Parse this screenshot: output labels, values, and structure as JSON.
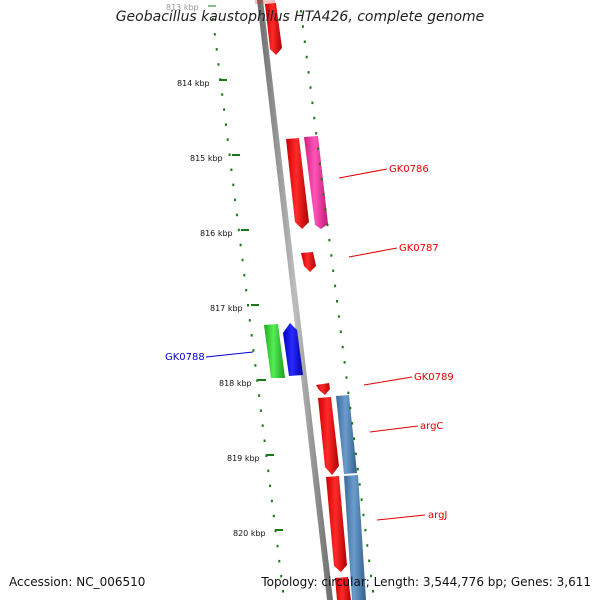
{
  "title": "Geobacillus kaustophilus HTA426, complete genome",
  "footer": {
    "accession": "Accession: NC_006510",
    "summary": "Topology: circular; Length: 3,544,776 bp; Genes: 3,611"
  },
  "ruler": [
    {
      "label": "813 kbp",
      "faded": true
    },
    {
      "label": "814 kbp"
    },
    {
      "label": "815 kbp"
    },
    {
      "label": "816 kbp"
    },
    {
      "label": "817 kbp"
    },
    {
      "label": "818 kbp"
    },
    {
      "label": "819 kbp"
    },
    {
      "label": "820 kbp"
    }
  ],
  "genes": [
    {
      "label": "GK0786",
      "color": "#e00000"
    },
    {
      "label": "GK0787",
      "color": "#e00000"
    },
    {
      "label": "GK0788",
      "color": "#0000cc"
    },
    {
      "label": "GK0789",
      "color": "#e00000"
    },
    {
      "label": "argC",
      "color": "#e00000"
    },
    {
      "label": "argJ",
      "color": "#e00000"
    }
  ],
  "colors": {
    "cds_forward": "#ff0000",
    "cds_reverse_blue": "#0000ff",
    "rna": "#ff33aa",
    "green_feature": "#33cc33",
    "steel_feature": "#4a7fb0",
    "ruler_tick": "#1a7a1a",
    "backbone": "#8a8a8a"
  }
}
